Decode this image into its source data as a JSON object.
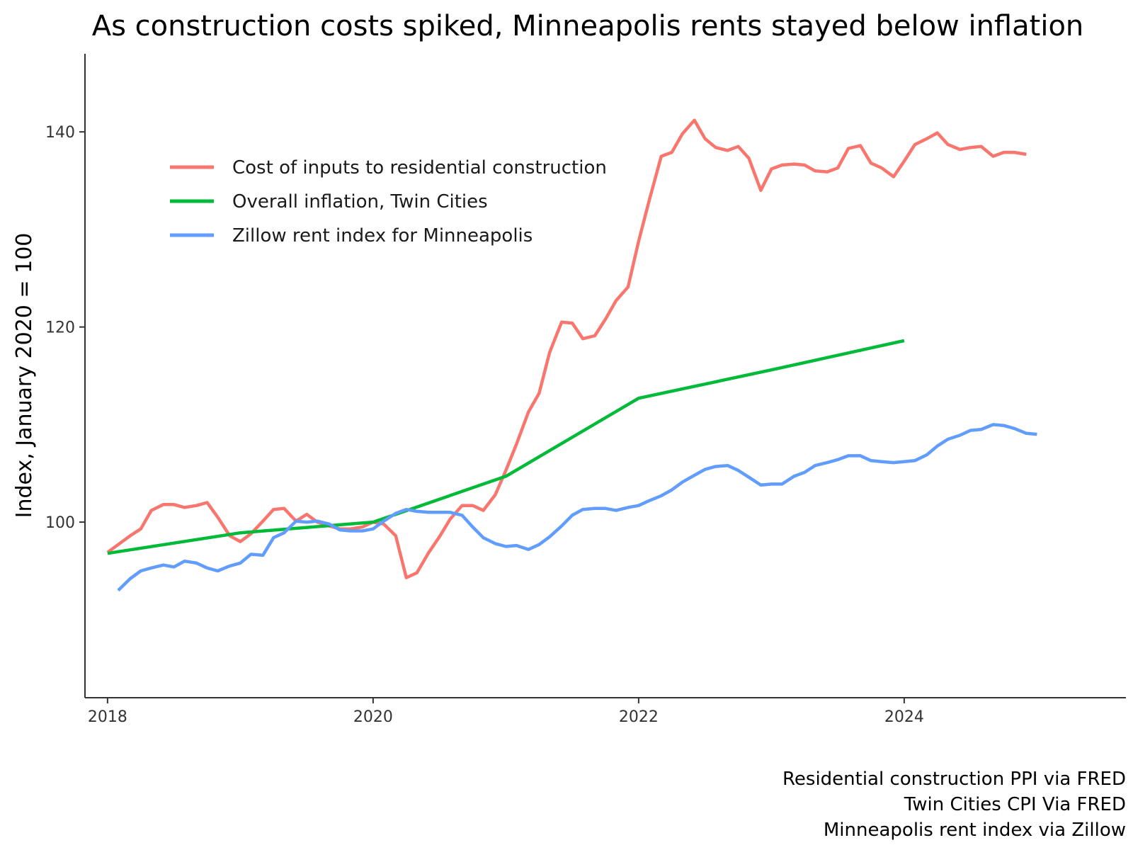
{
  "chart_data": {
    "type": "line",
    "title": "As construction costs spiked, Minneapolis rents stayed below inflation",
    "ylabel": "Index, January 2020 = 100",
    "xlabel": "",
    "xlim": [
      2017.83,
      2025.67
    ],
    "ylim": [
      82,
      148
    ],
    "x_ticks": [
      2018,
      2020,
      2022,
      2024
    ],
    "x_tick_labels": [
      "2018",
      "2020",
      "2022",
      "2024"
    ],
    "y_ticks": [
      100,
      120,
      140
    ],
    "y_tick_labels": [
      "100",
      "120",
      "140"
    ],
    "grid": false,
    "legend_position": "top-left inside",
    "series": [
      {
        "name": "Cost of inputs to residential construction",
        "color": "#F8766D",
        "x": [
          2018.0,
          2018.08,
          2018.17,
          2018.25,
          2018.33,
          2018.42,
          2018.5,
          2018.58,
          2018.67,
          2018.75,
          2018.83,
          2018.92,
          2019.0,
          2019.08,
          2019.17,
          2019.25,
          2019.33,
          2019.42,
          2019.5,
          2019.58,
          2019.67,
          2019.75,
          2019.83,
          2019.92,
          2020.0,
          2020.08,
          2020.17,
          2020.25,
          2020.33,
          2020.42,
          2020.5,
          2020.58,
          2020.67,
          2020.75,
          2020.83,
          2020.92,
          2021.0,
          2021.08,
          2021.17,
          2021.25,
          2021.33,
          2021.42,
          2021.5,
          2021.58,
          2021.67,
          2021.75,
          2021.83,
          2021.92,
          2022.0,
          2022.08,
          2022.17,
          2022.25,
          2022.33,
          2022.42,
          2022.5,
          2022.58,
          2022.67,
          2022.75,
          2022.83,
          2022.92,
          2023.0,
          2023.08,
          2023.17,
          2023.25,
          2023.33,
          2023.42,
          2023.5,
          2023.58,
          2023.67,
          2023.75,
          2023.83,
          2023.92,
          2024.0,
          2024.08,
          2024.17,
          2024.25,
          2024.33,
          2024.42,
          2024.5,
          2024.58,
          2024.67,
          2024.75,
          2024.83,
          2024.92
        ],
        "y": [
          96.9,
          97.7,
          98.6,
          99.3,
          101.2,
          101.8,
          101.8,
          101.5,
          101.7,
          102.0,
          100.5,
          98.6,
          98.0,
          98.8,
          100.1,
          101.3,
          101.4,
          100.1,
          100.8,
          100.0,
          99.6,
          99.3,
          99.3,
          99.5,
          100.0,
          99.8,
          98.6,
          94.3,
          94.8,
          96.9,
          98.5,
          100.3,
          101.7,
          101.7,
          101.2,
          102.8,
          105.3,
          108.0,
          111.3,
          113.2,
          117.4,
          120.5,
          120.4,
          118.8,
          119.1,
          120.8,
          122.7,
          124.1,
          128.8,
          133.0,
          137.5,
          137.9,
          139.8,
          141.2,
          139.3,
          138.4,
          138.1,
          138.5,
          137.3,
          134.0,
          136.2,
          136.6,
          136.7,
          136.6,
          136.0,
          135.9,
          136.3,
          138.3,
          138.6,
          136.8,
          136.3,
          135.4,
          137.0,
          138.7,
          139.3,
          139.9,
          138.7,
          138.2,
          138.4,
          138.5,
          137.5,
          137.9,
          137.9,
          137.7
        ]
      },
      {
        "name": "Overall inflation, Twin Cities",
        "color": "#00BA38",
        "x": [
          2018.0,
          2019.0,
          2020.0,
          2021.0,
          2022.0,
          2023.0,
          2024.0
        ],
        "y": [
          96.8,
          98.9,
          100.0,
          104.7,
          112.7,
          115.6,
          118.6
        ]
      },
      {
        "name": "Zillow rent index for Minneapolis",
        "color": "#619CFF",
        "x": [
          2018.08,
          2018.17,
          2018.25,
          2018.33,
          2018.42,
          2018.5,
          2018.58,
          2018.67,
          2018.75,
          2018.83,
          2018.92,
          2019.0,
          2019.08,
          2019.17,
          2019.25,
          2019.33,
          2019.42,
          2019.5,
          2019.58,
          2019.67,
          2019.75,
          2019.83,
          2019.92,
          2020.0,
          2020.08,
          2020.17,
          2020.25,
          2020.33,
          2020.42,
          2020.5,
          2020.58,
          2020.67,
          2020.75,
          2020.83,
          2020.92,
          2021.0,
          2021.08,
          2021.17,
          2021.25,
          2021.33,
          2021.42,
          2021.5,
          2021.58,
          2021.67,
          2021.75,
          2021.83,
          2021.92,
          2022.0,
          2022.08,
          2022.17,
          2022.25,
          2022.33,
          2022.42,
          2022.5,
          2022.58,
          2022.67,
          2022.75,
          2022.83,
          2022.92,
          2023.0,
          2023.08,
          2023.17,
          2023.25,
          2023.33,
          2023.42,
          2023.5,
          2023.58,
          2023.67,
          2023.75,
          2023.83,
          2023.92,
          2024.0,
          2024.08,
          2024.17,
          2024.25,
          2024.33,
          2024.42,
          2024.5,
          2024.58,
          2024.67,
          2024.75,
          2024.83,
          2024.92,
          2025.0
        ],
        "y": [
          93.0,
          94.2,
          95.0,
          95.3,
          95.6,
          95.4,
          96.0,
          95.8,
          95.3,
          95.0,
          95.5,
          95.8,
          96.7,
          96.6,
          98.4,
          98.9,
          100.1,
          100.0,
          100.1,
          99.8,
          99.2,
          99.1,
          99.1,
          99.3,
          100.1,
          100.9,
          101.3,
          101.1,
          101.0,
          101.0,
          101.0,
          100.7,
          99.5,
          98.4,
          97.8,
          97.5,
          97.6,
          97.2,
          97.7,
          98.5,
          99.6,
          100.7,
          101.3,
          101.4,
          101.4,
          101.2,
          101.5,
          101.7,
          102.2,
          102.7,
          103.3,
          104.1,
          104.8,
          105.4,
          105.7,
          105.8,
          105.3,
          104.6,
          103.8,
          103.9,
          103.9,
          104.7,
          105.1,
          105.8,
          106.1,
          106.4,
          106.8,
          106.8,
          106.3,
          106.2,
          106.1,
          106.2,
          106.3,
          106.9,
          107.8,
          108.5,
          108.9,
          109.4,
          109.5,
          110.0,
          109.9,
          109.6,
          109.1,
          109.0
        ]
      }
    ]
  },
  "caption": {
    "line1": "Residential construction PPI via FRED",
    "line2": "Twin Cities CPI Via FRED",
    "line3": "Minneapolis rent index via Zillow"
  }
}
